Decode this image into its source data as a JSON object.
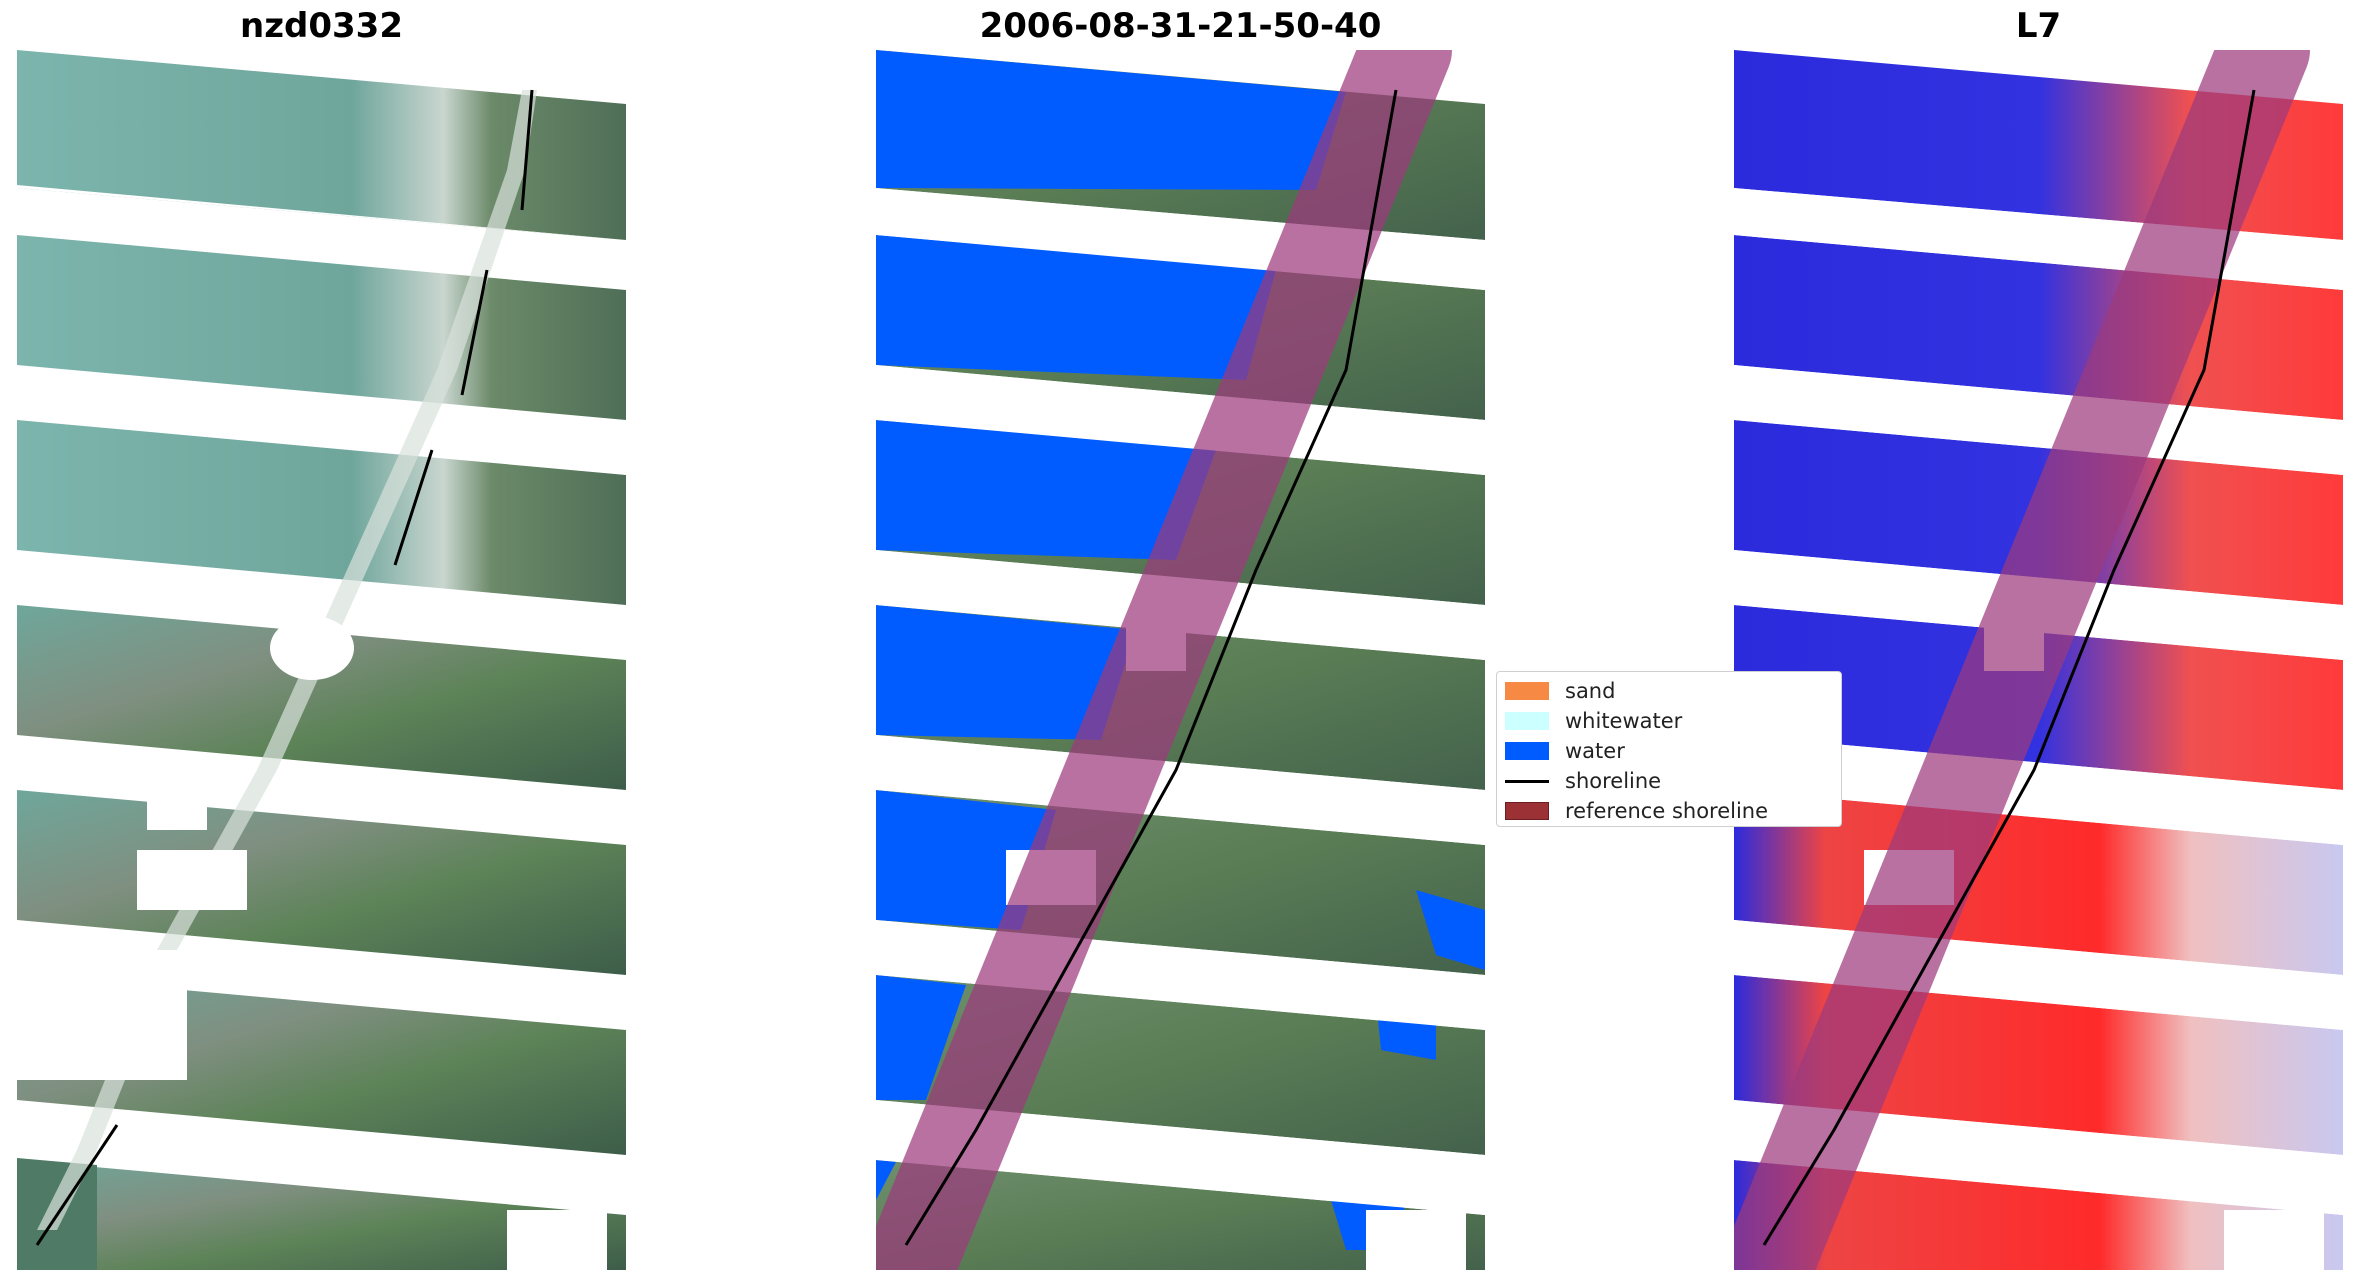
{
  "panels": [
    {
      "title": "nzd0332"
    },
    {
      "title": "2006-08-31-21-50-40"
    },
    {
      "title": "L7"
    }
  ],
  "legend": {
    "items": [
      {
        "label": "sand",
        "kind": "patch",
        "color": "#f68a45"
      },
      {
        "label": "whitewater",
        "kind": "patch",
        "color": "#ccffff"
      },
      {
        "label": "water",
        "kind": "patch",
        "color": "#005cff"
      },
      {
        "label": "shoreline",
        "kind": "line",
        "color": "#000000"
      },
      {
        "label": "reference shoreline",
        "kind": "patch",
        "color": "#9c3135"
      }
    ]
  },
  "colors": {
    "sea_rgb": "#74aea7",
    "land_rgb": "#5a7a58",
    "water_class": "#005cff",
    "index_water": "#2222dd",
    "index_land": "#ee3333",
    "buffer_overlay": "#9c3a7d"
  }
}
